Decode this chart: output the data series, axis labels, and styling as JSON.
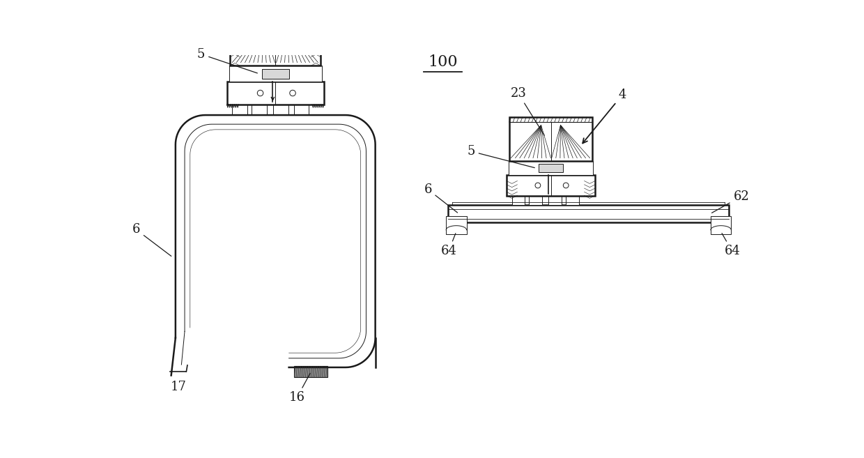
{
  "bg_color": "#ffffff",
  "line_color": "#1a1a1a",
  "fig_width": 12.4,
  "fig_height": 6.57,
  "title": "100"
}
